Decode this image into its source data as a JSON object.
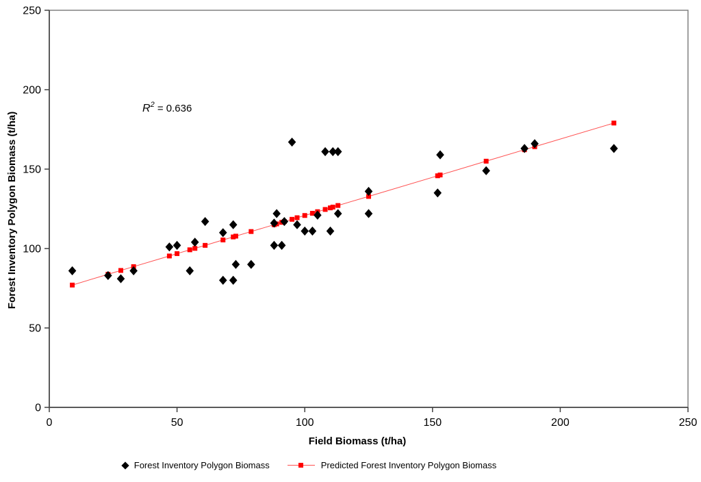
{
  "chart_data": {
    "type": "scatter",
    "title": "",
    "xlabel": "Field Biomass (t/ha)",
    "ylabel": "Forest Inventory Polygon Biomass (t/ha)",
    "xlim": [
      0,
      250
    ],
    "ylim": [
      0,
      250
    ],
    "xticks": [
      0,
      50,
      100,
      150,
      200,
      250
    ],
    "yticks": [
      0,
      50,
      100,
      150,
      200,
      250
    ],
    "grid": false,
    "legend_position": "bottom",
    "annotation": {
      "base": "R",
      "sup": "2",
      "rest": " = 0.636",
      "x_data": 37,
      "y_data": 190
    },
    "series": [
      {
        "name": "Forest Inventory Polygon Biomass",
        "marker": "diamond",
        "color": "#000000",
        "points": [
          [
            9,
            86
          ],
          [
            23,
            83
          ],
          [
            28,
            81
          ],
          [
            33,
            86
          ],
          [
            47,
            101
          ],
          [
            50,
            102
          ],
          [
            55,
            86
          ],
          [
            57,
            104
          ],
          [
            61,
            117
          ],
          [
            68,
            80
          ],
          [
            68,
            110
          ],
          [
            72,
            80
          ],
          [
            72,
            115
          ],
          [
            73,
            90
          ],
          [
            79,
            90
          ],
          [
            88,
            102
          ],
          [
            88,
            116
          ],
          [
            89,
            122
          ],
          [
            91,
            102
          ],
          [
            92,
            117
          ],
          [
            95,
            167
          ],
          [
            97,
            115
          ],
          [
            100,
            111
          ],
          [
            103,
            111
          ],
          [
            105,
            121
          ],
          [
            108,
            161
          ],
          [
            110,
            111
          ],
          [
            111,
            161
          ],
          [
            113,
            122
          ],
          [
            113,
            161
          ],
          [
            125,
            122
          ],
          [
            125,
            136
          ],
          [
            152,
            135
          ],
          [
            153,
            159
          ],
          [
            171,
            149
          ],
          [
            186,
            163
          ],
          [
            190,
            166
          ],
          [
            221,
            163
          ]
        ]
      },
      {
        "name": "Predicted Forest Inventory Polygon Biomass",
        "marker": "square",
        "color": "#ff0000",
        "line": true,
        "regression": {
          "slope": 0.481,
          "intercept": 72.7
        },
        "points": [
          [
            9,
            77
          ],
          [
            23,
            83.8
          ],
          [
            28,
            86.2
          ],
          [
            33,
            88.6
          ],
          [
            47,
            95.3
          ],
          [
            50,
            96.8
          ],
          [
            55,
            99.2
          ],
          [
            57,
            100.1
          ],
          [
            61,
            102
          ],
          [
            68,
            105.4
          ],
          [
            72,
            107.3
          ],
          [
            73,
            107.8
          ],
          [
            79,
            110.7
          ],
          [
            88,
            115
          ],
          [
            89,
            115.5
          ],
          [
            91,
            116.5
          ],
          [
            92,
            117
          ],
          [
            95,
            118.4
          ],
          [
            97,
            119.4
          ],
          [
            100,
            120.8
          ],
          [
            103,
            122.2
          ],
          [
            105,
            123.2
          ],
          [
            108,
            124.6
          ],
          [
            110,
            125.6
          ],
          [
            111,
            126.1
          ],
          [
            113,
            127.1
          ],
          [
            125,
            132.8
          ],
          [
            152,
            145.8
          ],
          [
            153,
            146.3
          ],
          [
            171,
            155
          ],
          [
            186,
            162.2
          ],
          [
            190,
            164.1
          ],
          [
            221,
            179
          ]
        ]
      }
    ]
  },
  "colors": {
    "marker_black": "#000000",
    "marker_red": "#ff0000",
    "line_red": "#ff5050",
    "frame": "#808080",
    "axis": "#595959",
    "tick": "#404040",
    "text": "#000000"
  }
}
